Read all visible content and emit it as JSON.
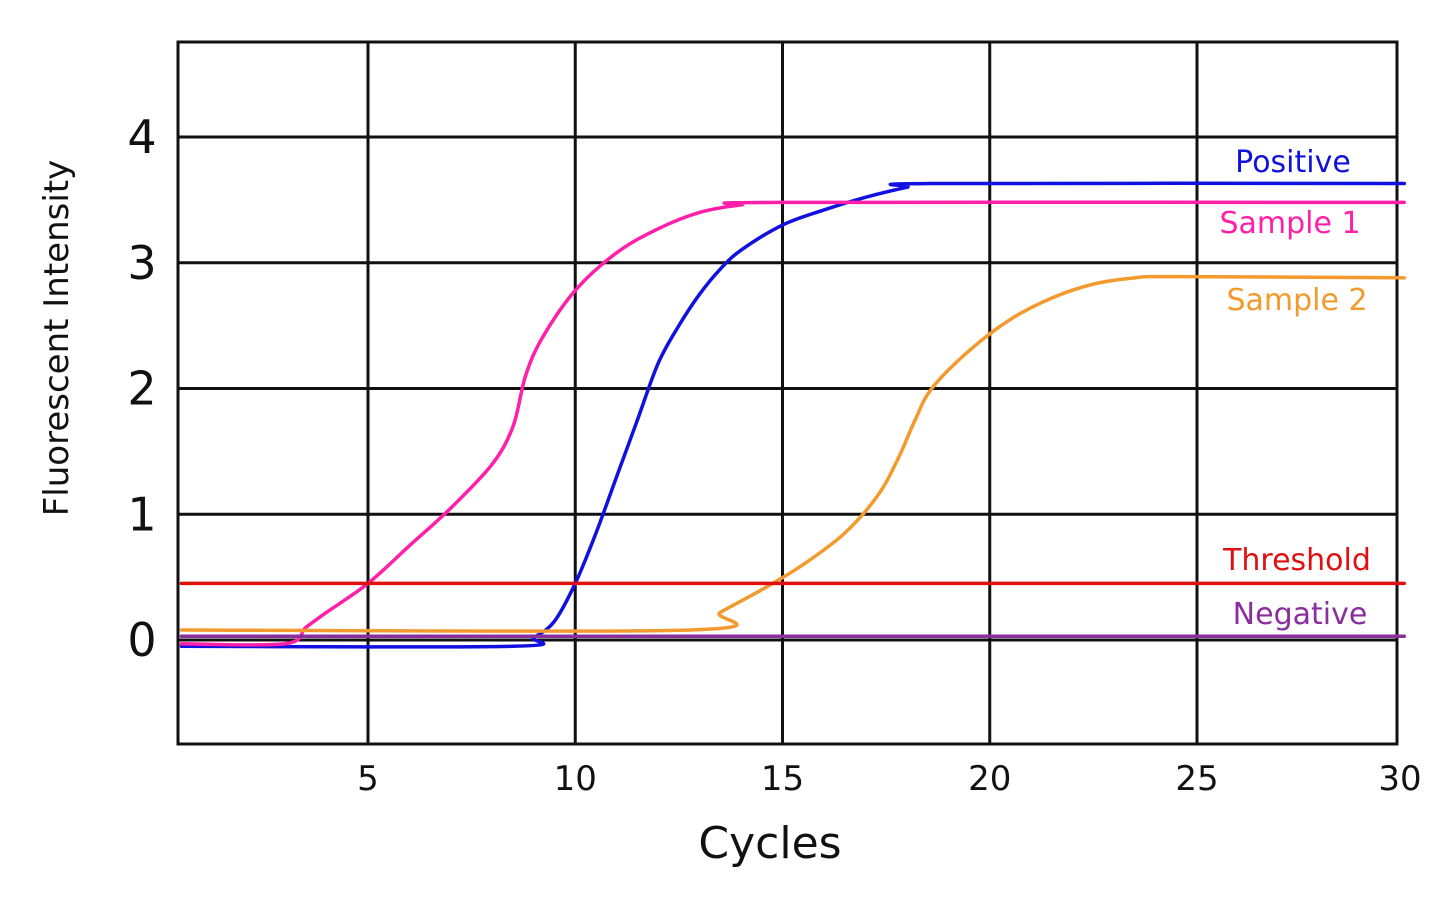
{
  "chart_data": {
    "type": "line",
    "title": "",
    "xlabel": "Cycles",
    "ylabel": "Fluorescent Intensity",
    "xlim": [
      0.5,
      30
    ],
    "ylim": [
      -0.8,
      4.8
    ],
    "grid": true,
    "x_ticks": [
      5,
      10,
      15,
      20,
      25,
      30
    ],
    "x_tick_labels": [
      "5",
      "10",
      "15",
      "20",
      "25",
      "30"
    ],
    "y_ticks": [
      0,
      1,
      2,
      3,
      4
    ],
    "y_tick_labels": [
      "0",
      "1",
      "2",
      "3",
      "4"
    ],
    "y_gridlines": [
      0,
      1,
      2,
      3,
      4
    ],
    "x_gridlines": [
      5,
      10,
      15,
      20,
      25
    ],
    "series": [
      {
        "name": "Positive",
        "color": "#1010e0",
        "points": [
          [
            0.5,
            -0.05
          ],
          [
            8.5,
            -0.05
          ],
          [
            9.0,
            0.02
          ],
          [
            9.5,
            0.15
          ],
          [
            10.0,
            0.45
          ],
          [
            10.5,
            0.85
          ],
          [
            11.0,
            1.3
          ],
          [
            11.5,
            1.75
          ],
          [
            12.0,
            2.2
          ],
          [
            12.5,
            2.5
          ],
          [
            13.0,
            2.75
          ],
          [
            13.5,
            2.95
          ],
          [
            14.0,
            3.1
          ],
          [
            15.0,
            3.3
          ],
          [
            16.0,
            3.42
          ],
          [
            17.0,
            3.52
          ],
          [
            18.0,
            3.6
          ],
          [
            18.6,
            3.63
          ],
          [
            30.0,
            3.63
          ]
        ]
      },
      {
        "name": "Sample 1",
        "color": "#ff1fa8",
        "points": [
          [
            0.5,
            -0.03
          ],
          [
            3.0,
            -0.03
          ],
          [
            3.5,
            0.1
          ],
          [
            4.0,
            0.22
          ],
          [
            5.0,
            0.45
          ],
          [
            6.0,
            0.75
          ],
          [
            7.0,
            1.05
          ],
          [
            8.0,
            1.4
          ],
          [
            8.5,
            1.7
          ],
          [
            8.8,
            2.1
          ],
          [
            9.2,
            2.4
          ],
          [
            10.0,
            2.78
          ],
          [
            11.0,
            3.08
          ],
          [
            12.0,
            3.27
          ],
          [
            13.0,
            3.4
          ],
          [
            14.0,
            3.46
          ],
          [
            15.0,
            3.48
          ],
          [
            30.0,
            3.48
          ]
        ]
      },
      {
        "name": "Sample 2",
        "color": "#f39a2e",
        "points": [
          [
            0.5,
            0.08
          ],
          [
            12.8,
            0.08
          ],
          [
            13.5,
            0.22
          ],
          [
            14.5,
            0.4
          ],
          [
            15.5,
            0.6
          ],
          [
            16.5,
            0.85
          ],
          [
            17.3,
            1.15
          ],
          [
            17.8,
            1.45
          ],
          [
            18.2,
            1.75
          ],
          [
            18.6,
            2.0
          ],
          [
            19.5,
            2.3
          ],
          [
            20.5,
            2.55
          ],
          [
            21.5,
            2.72
          ],
          [
            22.5,
            2.83
          ],
          [
            23.5,
            2.88
          ],
          [
            24.5,
            2.89
          ],
          [
            30.0,
            2.88
          ]
        ]
      },
      {
        "name": "Threshold",
        "color": "#e01010",
        "points": [
          [
            0.5,
            0.45
          ],
          [
            30.0,
            0.45
          ]
        ]
      },
      {
        "name": "Negative",
        "color": "#8a2e9e",
        "points": [
          [
            0.5,
            0.03
          ],
          [
            30.0,
            0.03
          ]
        ]
      }
    ],
    "labels": [
      {
        "series": "Positive",
        "text": "Positive",
        "color": "#1010e0"
      },
      {
        "series": "Sample 1",
        "text": "Sample 1",
        "color": "#ff1fa8"
      },
      {
        "series": "Sample 2",
        "text": "Sample 2",
        "color": "#f39a2e"
      },
      {
        "series": "Threshold",
        "text": "Threshold",
        "color": "#e01010"
      },
      {
        "series": "Negative",
        "text": "Negative",
        "color": "#8a2e9e"
      }
    ]
  }
}
